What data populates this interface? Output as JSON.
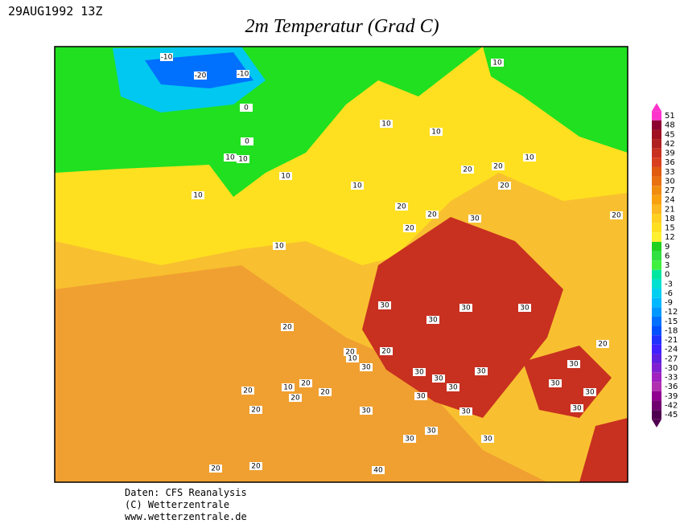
{
  "header": {
    "date": "29AUG1992 13Z",
    "title": "2m Temperatur (Grad C)"
  },
  "colorbar": {
    "ticks": [
      51,
      48,
      45,
      42,
      39,
      36,
      33,
      30,
      27,
      24,
      21,
      18,
      15,
      12,
      9,
      6,
      3,
      0,
      -3,
      -6,
      -9,
      -12,
      -15,
      -18,
      -21,
      -24,
      -27,
      -30,
      -33,
      -36,
      -39,
      -42,
      -45
    ],
    "colors": [
      "#ff33cc",
      "#8b0030",
      "#a01020",
      "#b02020",
      "#c83020",
      "#d84020",
      "#e05a10",
      "#e87010",
      "#f08c10",
      "#f8a010",
      "#fcb820",
      "#ffd020",
      "#ffe020",
      "#fff030",
      "#20d020",
      "#30e040",
      "#40f040",
      "#00e8a0",
      "#00e0d0",
      "#00d0f0",
      "#00b8ff",
      "#0098ff",
      "#0070ff",
      "#0050ff",
      "#2030ff",
      "#4020ff",
      "#6020e0",
      "#8020d0",
      "#a020c0",
      "#b030b0",
      "#900090",
      "#700070",
      "#500050"
    ]
  },
  "contour_labels": [
    -10,
    -20,
    -10,
    0,
    0,
    10,
    10,
    10,
    10,
    10,
    10,
    10,
    10,
    10,
    20,
    20,
    20,
    20,
    20,
    20,
    20,
    10,
    30,
    30,
    30,
    30,
    30,
    20,
    20,
    10,
    20,
    30,
    30,
    30,
    30,
    30,
    30,
    20,
    20,
    10,
    20,
    20,
    20,
    20,
    30,
    30,
    30,
    30,
    30,
    30,
    30,
    30,
    30,
    20,
    20,
    40
  ],
  "footer": [
    "Daten: CFS Reanalysis",
    "(C) Wetterzentrale",
    "www.wetterzentrale.de"
  ]
}
